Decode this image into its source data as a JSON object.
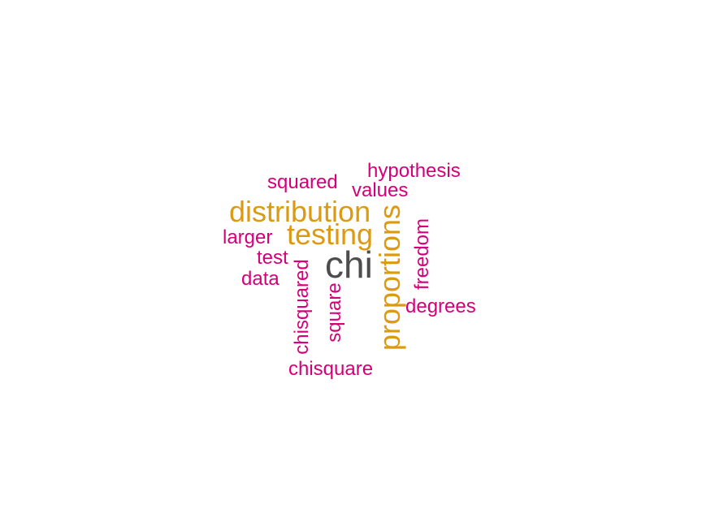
{
  "words": {
    "chi": {
      "text": "chi",
      "color": "#4d4d4d"
    },
    "distribution": {
      "text": "distribution",
      "color": "#dc9a12"
    },
    "testing": {
      "text": "testing",
      "color": "#dc9a12"
    },
    "proportions": {
      "text": "proportions",
      "color": "#dc9a12"
    },
    "hypothesis": {
      "text": "hypothesis",
      "color": "#d4007a"
    },
    "squared": {
      "text": "squared",
      "color": "#d4007a"
    },
    "values": {
      "text": "values",
      "color": "#d4007a"
    },
    "larger": {
      "text": "larger",
      "color": "#d4007a"
    },
    "test": {
      "text": "test",
      "color": "#d4007a"
    },
    "data": {
      "text": "data",
      "color": "#d4007a"
    },
    "freedom": {
      "text": "freedom",
      "color": "#d4007a"
    },
    "degrees": {
      "text": "degrees",
      "color": "#d4007a"
    },
    "chisquared": {
      "text": "chisquared",
      "color": "#d4007a"
    },
    "square": {
      "text": "square",
      "color": "#d4007a"
    },
    "chisquare": {
      "text": "chisquare",
      "color": "#d4007a"
    }
  }
}
